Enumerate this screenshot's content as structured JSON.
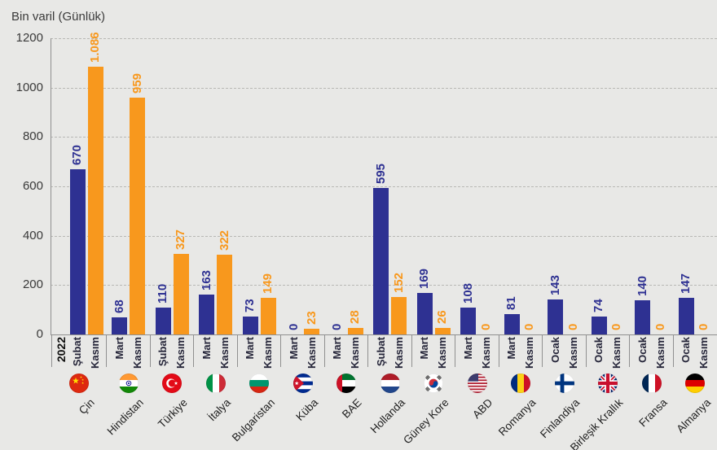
{
  "chart_data": {
    "type": "bar",
    "title": "Bin varil (Günlük)",
    "ylabel": "Bin varil (Günlük)",
    "ylim": [
      0,
      1200
    ],
    "yticks": [
      0,
      200,
      400,
      600,
      800,
      1000,
      1200
    ],
    "grid": true,
    "year_label": "2022",
    "colors": {
      "background": "#e8e8e6",
      "bar_first_month": "#2e3192",
      "bar_november": "#f8981d"
    },
    "groups": [
      {
        "country": "Çin",
        "flag_icon": "china",
        "bars": [
          {
            "month": "Şubat",
            "value": 670,
            "label": "670",
            "series": 0
          },
          {
            "month": "Kasım",
            "value": 1086,
            "label": "1.086",
            "series": 1
          }
        ]
      },
      {
        "country": "Hindistan",
        "flag_icon": "india",
        "bars": [
          {
            "month": "Mart",
            "value": 68,
            "label": "68",
            "series": 0
          },
          {
            "month": "Kasım",
            "value": 959,
            "label": "959",
            "series": 1
          }
        ]
      },
      {
        "country": "Türkiye",
        "flag_icon": "turkey",
        "bars": [
          {
            "month": "Şubat",
            "value": 110,
            "label": "110",
            "series": 0
          },
          {
            "month": "Kasım",
            "value": 327,
            "label": "327",
            "series": 1
          }
        ]
      },
      {
        "country": "İtalya",
        "flag_icon": "italy",
        "bars": [
          {
            "month": "Mart",
            "value": 163,
            "label": "163",
            "series": 0
          },
          {
            "month": "Kasım",
            "value": 322,
            "label": "322",
            "series": 1
          }
        ]
      },
      {
        "country": "Bulgaristan",
        "flag_icon": "bulgaria",
        "bars": [
          {
            "month": "Mart",
            "value": 73,
            "label": "73",
            "series": 0
          },
          {
            "month": "Kasım",
            "value": 149,
            "label": "149",
            "series": 1
          }
        ]
      },
      {
        "country": "Küba",
        "flag_icon": "cuba",
        "bars": [
          {
            "month": "Mart",
            "value": 0,
            "label": "0",
            "series": 0
          },
          {
            "month": "Kasım",
            "value": 23,
            "label": "23",
            "series": 1
          }
        ]
      },
      {
        "country": "BAE",
        "flag_icon": "uae",
        "bars": [
          {
            "month": "Mart",
            "value": 0,
            "label": "0",
            "series": 0
          },
          {
            "month": "Kasım",
            "value": 28,
            "label": "28",
            "series": 1
          }
        ]
      },
      {
        "country": "Hollanda",
        "flag_icon": "netherlands",
        "bars": [
          {
            "month": "Şubat",
            "value": 595,
            "label": "595",
            "series": 0
          },
          {
            "month": "Kasım",
            "value": 152,
            "label": "152",
            "series": 1
          }
        ]
      },
      {
        "country": "Güney Kore",
        "flag_icon": "south-korea",
        "bars": [
          {
            "month": "Mart",
            "value": 169,
            "label": "169",
            "series": 0
          },
          {
            "month": "Kasım",
            "value": 26,
            "label": "26",
            "series": 1
          }
        ]
      },
      {
        "country": "ABD",
        "flag_icon": "usa",
        "bars": [
          {
            "month": "Mart",
            "value": 108,
            "label": "108",
            "series": 0
          },
          {
            "month": "Kasım",
            "value": 0,
            "label": "0",
            "series": 1
          }
        ]
      },
      {
        "country": "Romanya",
        "flag_icon": "romania",
        "bars": [
          {
            "month": "Mart",
            "value": 81,
            "label": "81",
            "series": 0
          },
          {
            "month": "Kasım",
            "value": 0,
            "label": "0",
            "series": 1
          }
        ]
      },
      {
        "country": "Finlandiya",
        "flag_icon": "finland",
        "bars": [
          {
            "month": "Ocak",
            "value": 143,
            "label": "143",
            "series": 0
          },
          {
            "month": "Kasım",
            "value": 0,
            "label": "0",
            "series": 1
          }
        ]
      },
      {
        "country": "Birleşik Krallık",
        "flag_icon": "uk",
        "bars": [
          {
            "month": "Ocak",
            "value": 74,
            "label": "74",
            "series": 0
          },
          {
            "month": "Kasım",
            "value": 0,
            "label": "0",
            "series": 1
          }
        ]
      },
      {
        "country": "Fransa",
        "flag_icon": "france",
        "bars": [
          {
            "month": "Ocak",
            "value": 140,
            "label": "140",
            "series": 0
          },
          {
            "month": "Kasım",
            "value": 0,
            "label": "0",
            "series": 1
          }
        ]
      },
      {
        "country": "Almanya",
        "flag_icon": "germany",
        "bars": [
          {
            "month": "Ocak",
            "value": 147,
            "label": "147",
            "series": 0
          },
          {
            "month": "Kasım",
            "value": 0,
            "label": "0",
            "series": 1
          }
        ]
      }
    ]
  }
}
